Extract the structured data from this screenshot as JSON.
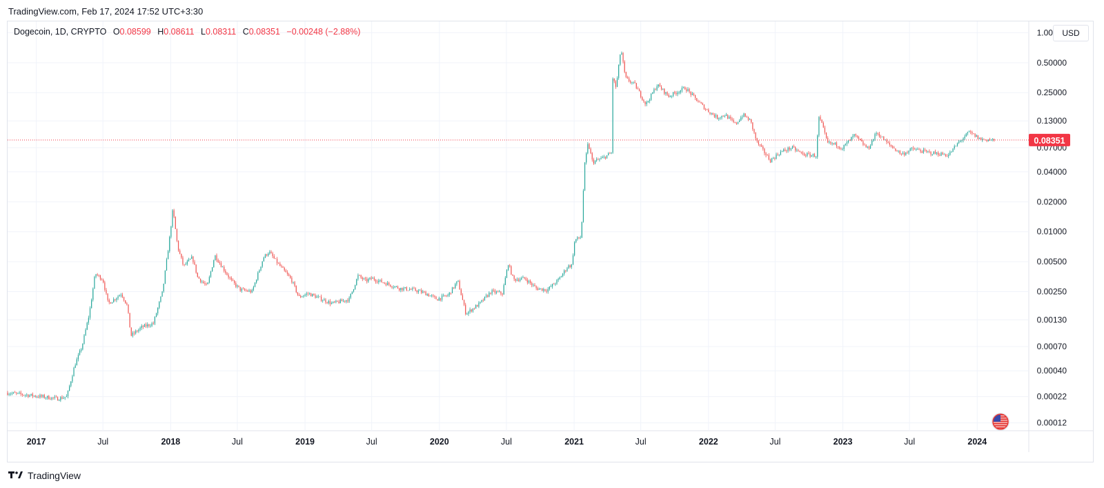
{
  "header": {
    "source_line": "TradingView.com, Feb 17, 2024 17:52 UTC+3:30"
  },
  "legend": {
    "symbol": "Dogecoin, 1D, CRYPTO",
    "o_label": "O",
    "o_value": "0.08599",
    "h_label": "H",
    "h_value": "0.08611",
    "l_label": "L",
    "l_value": "0.08311",
    "c_label": "C",
    "c_value": "0.08351",
    "change": "−0.00248 (−2.88%)"
  },
  "currency_button": "USD",
  "footer": {
    "brand": "TradingView"
  },
  "colors": {
    "up": "#26a69a",
    "down": "#ef5350",
    "grid": "#f0f3fa",
    "last_price": "#f23645"
  },
  "icons": {
    "flag": "us-flag-icon",
    "logo": "tradingview-logo-icon"
  },
  "chart_data": {
    "type": "candlestick",
    "scale": "log",
    "ylim": [
      0.0001,
      1.3
    ],
    "xlim": [
      "2016-10-15",
      "2024-05-20"
    ],
    "y_ticks": [
      {
        "value": 1.0,
        "label": "1.00000"
      },
      {
        "value": 0.5,
        "label": "0.50000"
      },
      {
        "value": 0.25,
        "label": "0.25000"
      },
      {
        "value": 0.13,
        "label": "0.13000"
      },
      {
        "value": 0.07,
        "label": "0.07000"
      },
      {
        "value": 0.04,
        "label": "0.04000"
      },
      {
        "value": 0.02,
        "label": "0.02000"
      },
      {
        "value": 0.01,
        "label": "0.01000"
      },
      {
        "value": 0.005,
        "label": "0.00500"
      },
      {
        "value": 0.0025,
        "label": "0.00250"
      },
      {
        "value": 0.0013,
        "label": "0.00130"
      },
      {
        "value": 0.0007,
        "label": "0.00070"
      },
      {
        "value": 0.0004,
        "label": "0.00040"
      },
      {
        "value": 0.00022,
        "label": "0.00022"
      },
      {
        "value": 0.00012,
        "label": "0.00012"
      }
    ],
    "x_ticks": [
      {
        "date": "2017-01-01",
        "label": "2017",
        "bold": true
      },
      {
        "date": "2017-07-01",
        "label": "Jul",
        "bold": false
      },
      {
        "date": "2018-01-01",
        "label": "2018",
        "bold": true
      },
      {
        "date": "2018-07-01",
        "label": "Jul",
        "bold": false
      },
      {
        "date": "2019-01-01",
        "label": "2019",
        "bold": true
      },
      {
        "date": "2019-07-01",
        "label": "Jul",
        "bold": false
      },
      {
        "date": "2020-01-01",
        "label": "2020",
        "bold": true
      },
      {
        "date": "2020-07-01",
        "label": "Jul",
        "bold": false
      },
      {
        "date": "2021-01-01",
        "label": "2021",
        "bold": true
      },
      {
        "date": "2021-07-01",
        "label": "Jul",
        "bold": false
      },
      {
        "date": "2022-01-01",
        "label": "2022",
        "bold": true
      },
      {
        "date": "2022-07-01",
        "label": "Jul",
        "bold": false
      },
      {
        "date": "2023-01-01",
        "label": "2023",
        "bold": true
      },
      {
        "date": "2023-07-01",
        "label": "Jul",
        "bold": false
      },
      {
        "date": "2024-01-01",
        "label": "2024",
        "bold": true
      }
    ],
    "last_price": {
      "value": 0.08351,
      "label": "0.08351"
    },
    "price_path": [
      [
        "2016-10-15",
        0.00024
      ],
      [
        "2016-12-01",
        0.00023
      ],
      [
        "2017-01-15",
        0.00022
      ],
      [
        "2017-03-01",
        0.00021
      ],
      [
        "2017-03-25",
        0.00022
      ],
      [
        "2017-04-15",
        0.00045
      ],
      [
        "2017-05-05",
        0.0007
      ],
      [
        "2017-05-25",
        0.0015
      ],
      [
        "2017-06-10",
        0.0038
      ],
      [
        "2017-07-01",
        0.0033
      ],
      [
        "2017-07-15",
        0.0019
      ],
      [
        "2017-08-01",
        0.0021
      ],
      [
        "2017-08-20",
        0.0024
      ],
      [
        "2017-09-05",
        0.0018
      ],
      [
        "2017-09-15",
        0.0009
      ],
      [
        "2017-10-15",
        0.0011
      ],
      [
        "2017-11-15",
        0.0012
      ],
      [
        "2017-12-10",
        0.0025
      ],
      [
        "2017-12-28",
        0.008
      ],
      [
        "2018-01-07",
        0.017
      ],
      [
        "2018-01-20",
        0.007
      ],
      [
        "2018-02-05",
        0.0045
      ],
      [
        "2018-03-01",
        0.0055
      ],
      [
        "2018-03-15",
        0.0035
      ],
      [
        "2018-04-10",
        0.0028
      ],
      [
        "2018-05-01",
        0.0058
      ],
      [
        "2018-05-20",
        0.0045
      ],
      [
        "2018-06-15",
        0.0032
      ],
      [
        "2018-07-10",
        0.0026
      ],
      [
        "2018-08-10",
        0.0025
      ],
      [
        "2018-09-10",
        0.0055
      ],
      [
        "2018-09-25",
        0.0063
      ],
      [
        "2018-10-15",
        0.005
      ],
      [
        "2018-11-25",
        0.0033
      ],
      [
        "2018-12-15",
        0.0022
      ],
      [
        "2019-01-10",
        0.0024
      ],
      [
        "2019-02-15",
        0.0021
      ],
      [
        "2019-03-15",
        0.0019
      ],
      [
        "2019-04-10",
        0.002
      ],
      [
        "2019-05-01",
        0.0021
      ],
      [
        "2019-05-25",
        0.0036
      ],
      [
        "2019-06-15",
        0.0032
      ],
      [
        "2019-07-01",
        0.0034
      ],
      [
        "2019-08-01",
        0.0031
      ],
      [
        "2019-09-15",
        0.0027
      ],
      [
        "2019-10-25",
        0.0026
      ],
      [
        "2019-11-25",
        0.0024
      ],
      [
        "2019-12-25",
        0.0021
      ],
      [
        "2020-01-25",
        0.0023
      ],
      [
        "2020-02-20",
        0.0032
      ],
      [
        "2020-03-13",
        0.0015
      ],
      [
        "2020-04-20",
        0.0019
      ],
      [
        "2020-05-20",
        0.0025
      ],
      [
        "2020-06-20",
        0.0024
      ],
      [
        "2020-07-06",
        0.0048
      ],
      [
        "2020-07-20",
        0.0033
      ],
      [
        "2020-08-20",
        0.0034
      ],
      [
        "2020-09-20",
        0.0027
      ],
      [
        "2020-10-20",
        0.0026
      ],
      [
        "2020-11-20",
        0.0033
      ],
      [
        "2020-12-15",
        0.0045
      ],
      [
        "2020-12-25",
        0.0046
      ],
      [
        "2021-01-03",
        0.0083
      ],
      [
        "2021-01-20",
        0.0088
      ],
      [
        "2021-01-29",
        0.045
      ],
      [
        "2021-02-08",
        0.078
      ],
      [
        "2021-02-20",
        0.05
      ],
      [
        "2021-03-20",
        0.055
      ],
      [
        "2021-04-12",
        0.062
      ],
      [
        "2021-04-16",
        0.35
      ],
      [
        "2021-04-25",
        0.28
      ],
      [
        "2021-05-08",
        0.7
      ],
      [
        "2021-05-20",
        0.35
      ],
      [
        "2021-06-15",
        0.3
      ],
      [
        "2021-07-15",
        0.19
      ],
      [
        "2021-08-15",
        0.3
      ],
      [
        "2021-09-15",
        0.23
      ],
      [
        "2021-10-30",
        0.28
      ],
      [
        "2021-11-25",
        0.22
      ],
      [
        "2021-12-25",
        0.17
      ],
      [
        "2022-01-25",
        0.14
      ],
      [
        "2022-02-15",
        0.15
      ],
      [
        "2022-03-15",
        0.12
      ],
      [
        "2022-04-05",
        0.15
      ],
      [
        "2022-04-25",
        0.13
      ],
      [
        "2022-05-12",
        0.08
      ],
      [
        "2022-06-18",
        0.052
      ],
      [
        "2022-07-15",
        0.063
      ],
      [
        "2022-08-15",
        0.07
      ],
      [
        "2022-09-15",
        0.06
      ],
      [
        "2022-10-20",
        0.058
      ],
      [
        "2022-10-28",
        0.14
      ],
      [
        "2022-11-05",
        0.12
      ],
      [
        "2022-11-20",
        0.078
      ],
      [
        "2022-12-15",
        0.075
      ],
      [
        "2022-12-30",
        0.069
      ],
      [
        "2023-02-01",
        0.093
      ],
      [
        "2023-03-10",
        0.068
      ],
      [
        "2023-04-03",
        0.1
      ],
      [
        "2023-05-01",
        0.078
      ],
      [
        "2023-06-10",
        0.06
      ],
      [
        "2023-07-10",
        0.068
      ],
      [
        "2023-08-17",
        0.063
      ],
      [
        "2023-09-15",
        0.061
      ],
      [
        "2023-10-15",
        0.059
      ],
      [
        "2023-11-10",
        0.078
      ],
      [
        "2023-12-10",
        0.1
      ],
      [
        "2024-01-10",
        0.085
      ],
      [
        "2024-02-17",
        0.08351
      ]
    ]
  }
}
